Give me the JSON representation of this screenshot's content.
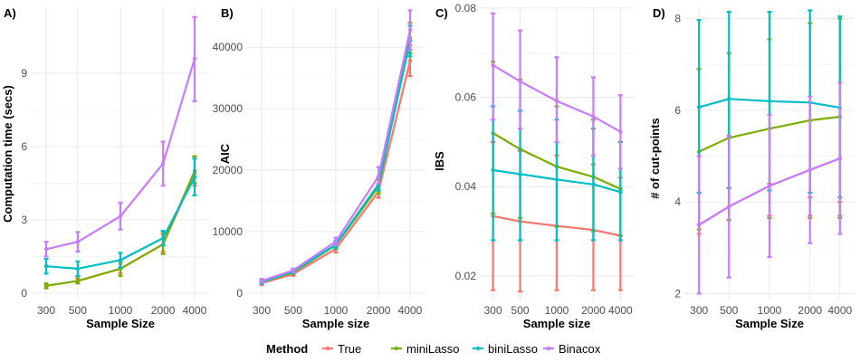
{
  "legend": {
    "title": "Method",
    "items": [
      {
        "name": "True",
        "color": "#F8766D"
      },
      {
        "name": "miniLasso",
        "color": "#7CAE00"
      },
      {
        "name": "biniLasso",
        "color": "#00BFC4"
      },
      {
        "name": "Binacox",
        "color": "#C77CFF"
      }
    ]
  },
  "chart_data": [
    {
      "id": "A",
      "tag": "A)",
      "type": "line",
      "title": "",
      "xlabel": "Sample Size",
      "ylabel": "Computation time (secs)",
      "categories": [
        "300",
        "500",
        "1000",
        "2000",
        "4000"
      ],
      "ylim": [
        -0.3,
        11.7
      ],
      "yticks": [
        0,
        3,
        6,
        9
      ],
      "ytick_labels": [
        "0",
        "3",
        "6",
        "9"
      ],
      "grid": true,
      "series": [
        {
          "name": "True",
          "values": [
            0.3,
            0.5,
            1.0,
            2.0,
            4.9
          ],
          "err_low": [
            0.2,
            0.4,
            0.8,
            1.7,
            4.4
          ],
          "err_high": [
            0.4,
            0.6,
            1.2,
            2.4,
            5.6
          ]
        },
        {
          "name": "miniLasso",
          "values": [
            0.3,
            0.5,
            1.0,
            2.0,
            5.0
          ],
          "err_low": [
            0.2,
            0.4,
            0.7,
            1.6,
            4.5
          ],
          "err_high": [
            0.4,
            0.7,
            1.3,
            2.5,
            5.6
          ]
        },
        {
          "name": "biniLasso",
          "values": [
            1.1,
            1.0,
            1.35,
            2.25,
            4.75
          ],
          "err_low": [
            0.8,
            0.7,
            1.05,
            1.95,
            4.0
          ],
          "err_high": [
            1.4,
            1.3,
            1.65,
            2.55,
            5.5
          ]
        },
        {
          "name": "Binacox",
          "values": [
            1.8,
            2.1,
            3.15,
            5.3,
            9.6
          ],
          "err_low": [
            1.5,
            1.7,
            2.6,
            4.4,
            7.85
          ],
          "err_high": [
            2.1,
            2.5,
            3.7,
            6.2,
            11.3
          ]
        }
      ]
    },
    {
      "id": "B",
      "tag": "B)",
      "type": "line",
      "title": "",
      "xlabel": "Sample size",
      "ylabel": "AIC",
      "categories": [
        "300",
        "500",
        "1000",
        "2000",
        "4000"
      ],
      "ylim": [
        -1200,
        46500
      ],
      "yticks": [
        0,
        10000,
        20000,
        30000,
        40000
      ],
      "ytick_labels": [
        "0",
        "10000",
        "20000",
        "30000",
        "40000"
      ],
      "grid": true,
      "series": [
        {
          "name": "True",
          "values": [
            1600,
            3100,
            7200,
            16500,
            37800
          ],
          "err_low": [
            1300,
            2800,
            6600,
            15500,
            35300
          ],
          "err_high": [
            1900,
            3400,
            7800,
            17500,
            40300
          ]
        },
        {
          "name": "miniLasso",
          "values": [
            1800,
            3400,
            7800,
            17300,
            41500
          ],
          "err_low": [
            1500,
            3100,
            7200,
            16200,
            39000
          ],
          "err_high": [
            2100,
            3700,
            8400,
            18400,
            44000
          ]
        },
        {
          "name": "biniLasso",
          "values": [
            1800,
            3500,
            7900,
            17700,
            41000
          ],
          "err_low": [
            1500,
            3200,
            7300,
            16700,
            38500
          ],
          "err_high": [
            2100,
            3800,
            8500,
            18700,
            43500
          ]
        },
        {
          "name": "Binacox",
          "values": [
            2000,
            3700,
            8400,
            19000,
            42800
          ],
          "err_low": [
            1700,
            3400,
            7800,
            17800,
            39600
          ],
          "err_high": [
            2300,
            4000,
            9000,
            20500,
            46000
          ]
        }
      ]
    },
    {
      "id": "C",
      "tag": "C)",
      "type": "line",
      "title": "",
      "xlabel": "Sample size",
      "ylabel": "IBS",
      "categories": [
        "300",
        "500",
        "1000",
        "2000",
        "4000"
      ],
      "ylim": [
        0.0145,
        0.0802
      ],
      "yticks": [
        0.02,
        0.04,
        0.06,
        0.08
      ],
      "ytick_labels": [
        "0.02",
        "0.04",
        "0.06",
        "0.08"
      ],
      "grid": true,
      "series": [
        {
          "name": "True",
          "values": [
            0.0334,
            0.0322,
            0.0312,
            0.0303,
            0.029
          ],
          "err_low": [
            0.0168,
            0.0165,
            0.0168,
            0.0168,
            0.0168
          ],
          "err_high": [
            0.05,
            0.048,
            0.047,
            0.045,
            0.042
          ]
        },
        {
          "name": "miniLasso",
          "values": [
            0.052,
            0.0484,
            0.0445,
            0.0422,
            0.0395
          ],
          "err_low": [
            0.034,
            0.033,
            0.031,
            0.03,
            0.029
          ],
          "err_high": [
            0.068,
            0.064,
            0.058,
            0.055,
            0.05
          ]
        },
        {
          "name": "biniLasso",
          "values": [
            0.0437,
            0.0428,
            0.0416,
            0.0405,
            0.0388
          ],
          "err_low": [
            0.028,
            0.028,
            0.028,
            0.028,
            0.028
          ],
          "err_high": [
            0.058,
            0.057,
            0.055,
            0.053,
            0.05
          ]
        },
        {
          "name": "Binacox",
          "values": [
            0.0672,
            0.0636,
            0.0592,
            0.0557,
            0.0523
          ],
          "err_low": [
            0.055,
            0.053,
            0.05,
            0.047,
            0.044
          ],
          "err_high": [
            0.0788,
            0.075,
            0.069,
            0.0645,
            0.0605
          ]
        }
      ]
    },
    {
      "id": "D",
      "tag": "D)",
      "type": "line",
      "title": "",
      "xlabel": "Sample Size",
      "ylabel": "# of cut-points",
      "categories": [
        "300",
        "500",
        "1000",
        "2000",
        "4000"
      ],
      "ylim": [
        1.85,
        8.25
      ],
      "yticks": [
        2,
        4,
        6,
        8
      ],
      "ytick_labels": [
        "2",
        "4",
        "6",
        "8"
      ],
      "grid": true,
      "series": [
        {
          "name": "True",
          "values": [
            3.5,
            3.9,
            4.35,
            4.7,
            4.95
          ],
          "err_low": [
            3.3,
            3.6,
            3.7,
            3.7,
            3.7
          ],
          "err_high": [
            4.2,
            4.3,
            4.4,
            4.1,
            4.0
          ]
        },
        {
          "name": "miniLasso",
          "values": [
            5.1,
            5.4,
            5.6,
            5.78,
            5.86
          ],
          "err_low": [
            3.4,
            3.6,
            3.65,
            3.65,
            3.65
          ],
          "err_high": [
            6.9,
            7.25,
            7.55,
            7.9,
            8.0
          ]
        },
        {
          "name": "biniLasso",
          "values": [
            6.07,
            6.25,
            6.2,
            6.17,
            6.06
          ],
          "err_low": [
            4.2,
            4.3,
            4.25,
            4.2,
            4.1
          ],
          "err_high": [
            7.97,
            8.15,
            8.15,
            8.18,
            8.05
          ]
        },
        {
          "name": "Binacox",
          "values": [
            3.5,
            3.9,
            4.35,
            4.7,
            4.95
          ],
          "err_low": [
            2.0,
            2.35,
            2.8,
            3.1,
            3.3
          ],
          "err_high": [
            5.0,
            5.45,
            5.9,
            6.3,
            6.6
          ]
        }
      ]
    }
  ]
}
